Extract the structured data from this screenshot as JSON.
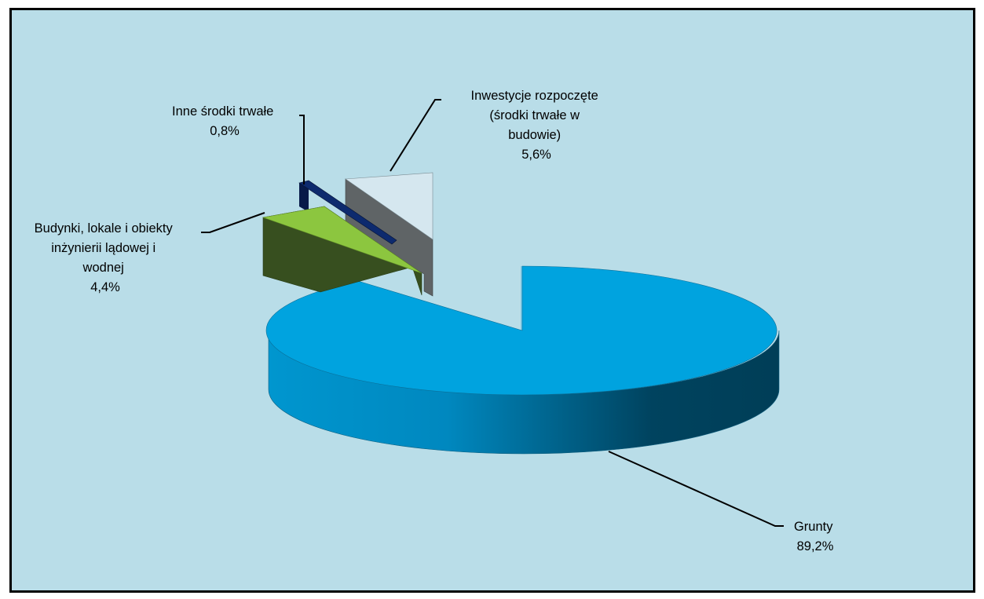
{
  "chart_data": {
    "type": "pie",
    "title": "",
    "legend": "none",
    "slices": [
      {
        "label_lines": [
          "Grunty"
        ],
        "value_text": "89,2%",
        "value": 89.2,
        "color": "#009fda"
      },
      {
        "label_lines": [
          "Budynki, lokale i obiekty",
          "inżynierii lądowej i",
          "wodnej"
        ],
        "value_text": "4,4%",
        "value": 4.4,
        "color": "#8cc63f"
      },
      {
        "label_lines": [
          "Inne środki trwałe"
        ],
        "value_text": "0,8%",
        "value": 0.8,
        "color": "#0d2a6e"
      },
      {
        "label_lines": [
          "Inwestycje rozpoczęte",
          "(środki trwałe w",
          "budowie)"
        ],
        "value_text": "5,6%",
        "value": 5.6,
        "color": "#d5e7ef"
      }
    ]
  }
}
